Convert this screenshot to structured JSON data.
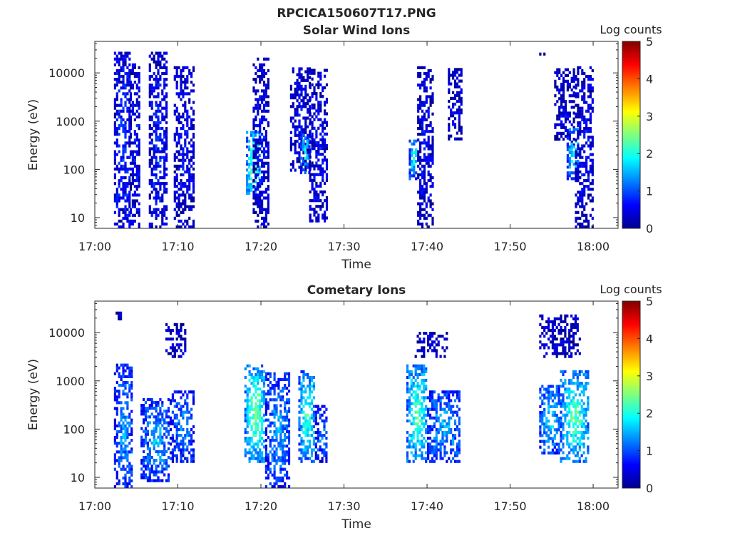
{
  "figure_title": "RPCICA150607T17.PNG",
  "chart_data": [
    {
      "type": "heatmap",
      "title": "Solar Wind Ions",
      "xlabel": "Time",
      "ylabel": "Energy (eV)",
      "xticks": [
        "17:00",
        "17:10",
        "17:20",
        "17:30",
        "17:40",
        "17:50",
        "18:00"
      ],
      "yticks": [
        "10",
        "100",
        "1000",
        "10000"
      ],
      "y_scale": "log",
      "ylim": [
        6,
        45000
      ],
      "xlim_minutes": [
        0,
        63
      ],
      "colorbar": {
        "label": "Log counts",
        "ticks": [
          "0",
          "1",
          "2",
          "3",
          "4",
          "5"
        ],
        "range": [
          0,
          5
        ]
      },
      "bursts": [
        {
          "t": [
            2.3,
            4.2
          ],
          "e": [
            6,
            25000
          ],
          "level": 0.9
        },
        {
          "t": [
            4.2,
            5.4
          ],
          "e": [
            6,
            14000
          ],
          "level": 0.7
        },
        {
          "t": [
            6.5,
            8.6
          ],
          "e": [
            6,
            24000
          ],
          "level": 0.8
        },
        {
          "t": [
            9.5,
            12.0
          ],
          "e": [
            6,
            13000
          ],
          "level": 0.6
        },
        {
          "t": [
            18.2,
            19.8
          ],
          "e": [
            30,
            600
          ],
          "level": 2.6
        },
        {
          "t": [
            19.0,
            21.0
          ],
          "e": [
            6,
            20000
          ],
          "level": 0.6
        },
        {
          "t": [
            23.5,
            26.0
          ],
          "e": [
            90,
            13000
          ],
          "level": 0.6
        },
        {
          "t": [
            24.7,
            25.8
          ],
          "e": [
            80,
            500
          ],
          "level": 2.0
        },
        {
          "t": [
            25.8,
            28.0
          ],
          "e": [
            8,
            12000
          ],
          "level": 0.6
        },
        {
          "t": [
            37.8,
            38.8
          ],
          "e": [
            60,
            400
          ],
          "level": 2.0
        },
        {
          "t": [
            38.8,
            40.6
          ],
          "e": [
            6,
            12000
          ],
          "level": 0.6
        },
        {
          "t": [
            42.5,
            44.2
          ],
          "e": [
            400,
            12000
          ],
          "level": 0.5
        },
        {
          "t": [
            53.5,
            54.2
          ],
          "e": [
            20000,
            25000
          ],
          "level": 0.3
        },
        {
          "t": [
            55.3,
            57.8
          ],
          "e": [
            300,
            12000
          ],
          "level": 0.5
        },
        {
          "t": [
            56.8,
            58.2
          ],
          "e": [
            60,
            700
          ],
          "level": 2.1
        },
        {
          "t": [
            57.8,
            60.0
          ],
          "e": [
            6,
            12000
          ],
          "level": 0.6
        }
      ]
    },
    {
      "type": "heatmap",
      "title": "Cometary Ions",
      "xlabel": "Time",
      "ylabel": "Energy (eV)",
      "xticks": [
        "17:00",
        "17:10",
        "17:20",
        "17:30",
        "17:40",
        "17:50",
        "18:00"
      ],
      "yticks": [
        "10",
        "100",
        "1000",
        "10000"
      ],
      "y_scale": "log",
      "ylim": [
        6,
        45000
      ],
      "xlim_minutes": [
        0,
        63
      ],
      "colorbar": {
        "label": "Log counts",
        "ticks": [
          "0",
          "1",
          "2",
          "3",
          "4",
          "5"
        ],
        "range": [
          0,
          5
        ]
      },
      "bursts": [
        {
          "t": [
            2.3,
            4.5
          ],
          "e": [
            6,
            2000
          ],
          "level": 1.5
        },
        {
          "t": [
            2.5,
            3.2
          ],
          "e": [
            18000,
            25000
          ],
          "level": 0.4
        },
        {
          "t": [
            5.5,
            9.0
          ],
          "e": [
            8,
            400
          ],
          "level": 1.6
        },
        {
          "t": [
            9.0,
            12.0
          ],
          "e": [
            20,
            600
          ],
          "level": 1.4
        },
        {
          "t": [
            8.5,
            11.0
          ],
          "e": [
            3000,
            15000
          ],
          "level": 0.4
        },
        {
          "t": [
            18.0,
            20.5
          ],
          "e": [
            20,
            2000
          ],
          "level": 2.6
        },
        {
          "t": [
            20.5,
            23.5
          ],
          "e": [
            6,
            1500
          ],
          "level": 1.5
        },
        {
          "t": [
            24.5,
            26.5
          ],
          "e": [
            20,
            1500
          ],
          "level": 2.3
        },
        {
          "t": [
            26.5,
            28.0
          ],
          "e": [
            20,
            300
          ],
          "level": 1.3
        },
        {
          "t": [
            37.5,
            40.0
          ],
          "e": [
            20,
            2000
          ],
          "level": 2.4
        },
        {
          "t": [
            40.0,
            44.0
          ],
          "e": [
            20,
            600
          ],
          "level": 1.6
        },
        {
          "t": [
            38.5,
            42.5
          ],
          "e": [
            3000,
            10000
          ],
          "level": 0.4
        },
        {
          "t": [
            53.5,
            56.0
          ],
          "e": [
            30,
            800
          ],
          "level": 1.8
        },
        {
          "t": [
            56.0,
            59.5
          ],
          "e": [
            20,
            1500
          ],
          "level": 2.4
        },
        {
          "t": [
            53.5,
            58.5
          ],
          "e": [
            3000,
            22000
          ],
          "level": 0.4
        }
      ]
    }
  ]
}
